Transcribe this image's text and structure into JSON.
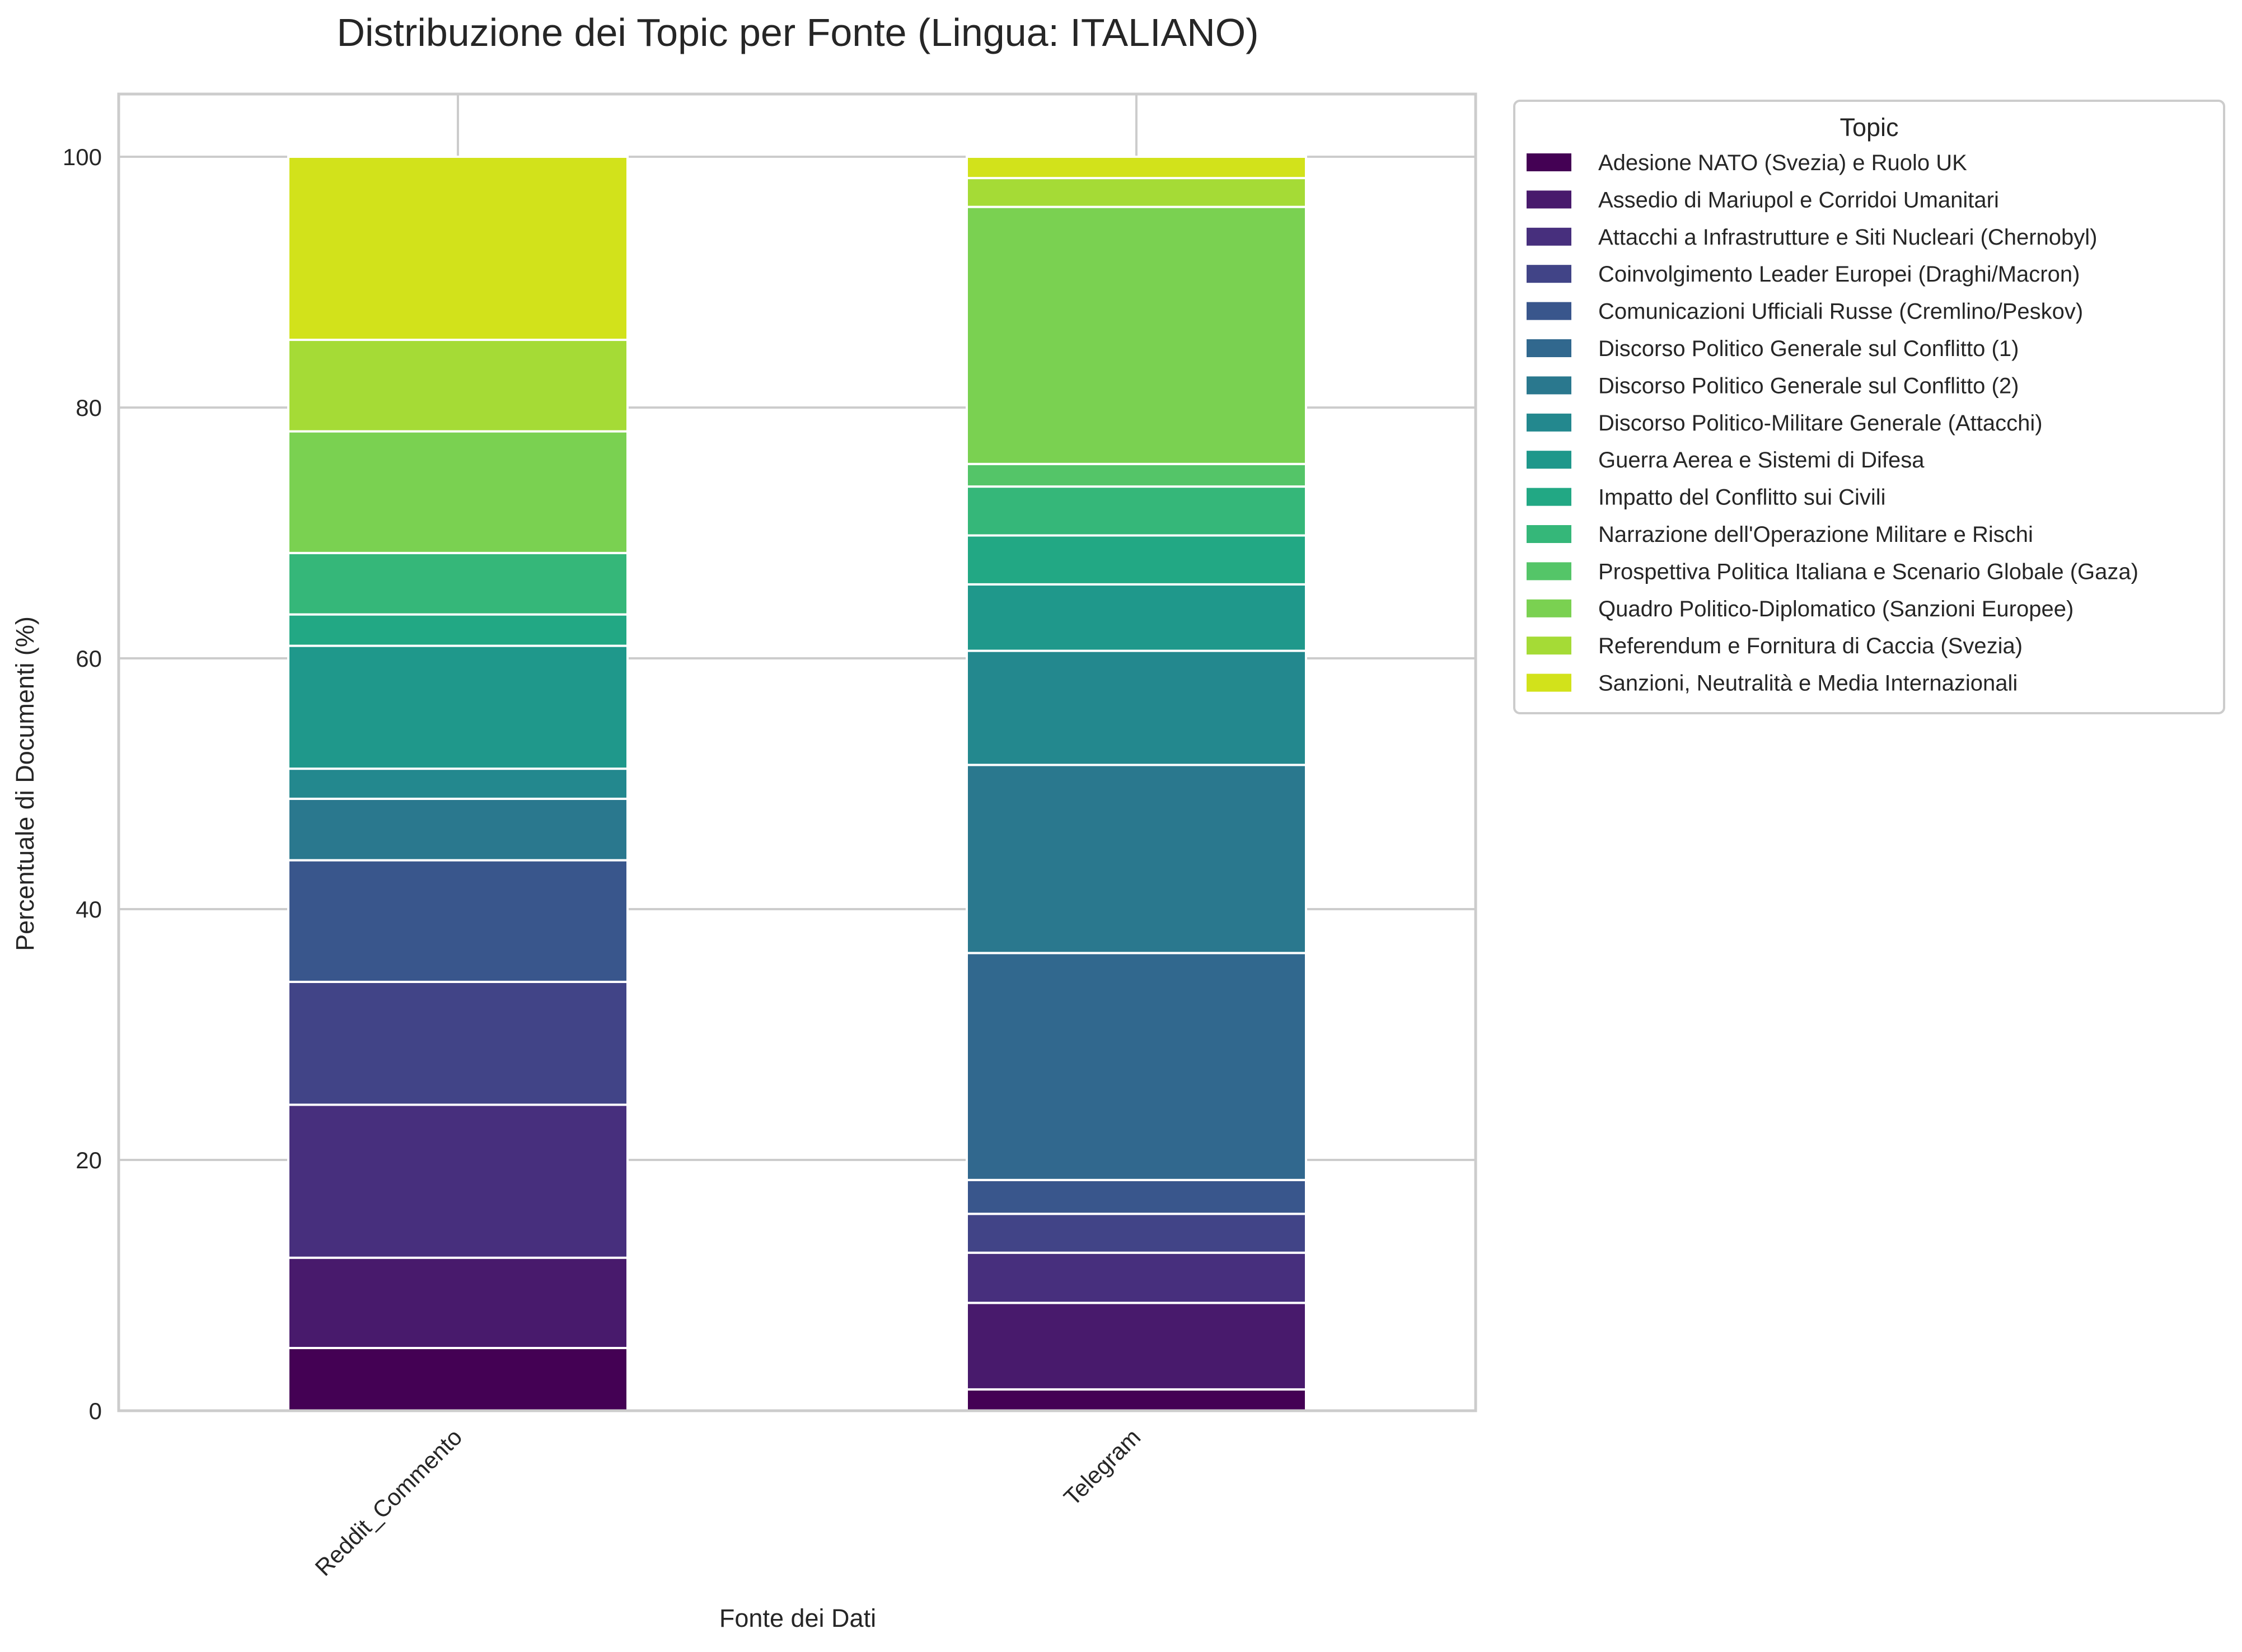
{
  "chart_data": {
    "type": "bar",
    "stacked": true,
    "title": "Distribuzione dei Topic per Fonte (Lingua: ITALIANO)",
    "xlabel": "Fonte dei Dati",
    "ylabel": "Percentuale di Documenti (%)",
    "ylim": [
      0,
      105
    ],
    "yticks": [
      0,
      20,
      40,
      60,
      80,
      100
    ],
    "categories": [
      "Reddit_Commento",
      "Telegram"
    ],
    "grid": true,
    "legend": {
      "title": "Topic",
      "placement": "outside-top-right"
    },
    "series": [
      {
        "name": "Adesione NATO (Svezia) e Ruolo UK",
        "color": "#440154",
        "values": [
          5.0,
          1.7
        ]
      },
      {
        "name": "Assedio di Mariupol e Corridoi Umanitari",
        "color": "#481a6c",
        "values": [
          7.2,
          6.9
        ]
      },
      {
        "name": "Attacchi a Infrastrutture e Siti Nucleari (Chernobyl)",
        "color": "#472f7d",
        "values": [
          12.2,
          4.0
        ]
      },
      {
        "name": "Coinvolgimento Leader Europei (Draghi/Macron)",
        "color": "#414487",
        "values": [
          9.8,
          3.1
        ]
      },
      {
        "name": "Comunicazioni Ufficiali Russe (Cremlino/Peskov)",
        "color": "#39568c",
        "values": [
          9.7,
          2.7
        ]
      },
      {
        "name": "Discorso Politico Generale sul Conflitto (1)",
        "color": "#31688e",
        "values": [
          0.0,
          18.1
        ]
      },
      {
        "name": "Discorso Politico Generale sul Conflitto (2)",
        "color": "#2a788e",
        "values": [
          4.9,
          15.0
        ]
      },
      {
        "name": "Discorso Politico-Militare Generale (Attacchi)",
        "color": "#23888e",
        "values": [
          2.4,
          9.1
        ]
      },
      {
        "name": "Guerra Aerea e Sistemi di Difesa",
        "color": "#1f988b",
        "values": [
          9.8,
          5.3
        ]
      },
      {
        "name": "Impatto del Conflitto sui Civili",
        "color": "#22a884",
        "values": [
          2.5,
          3.9
        ]
      },
      {
        "name": "Narrazione dell'Operazione Militare e Rischi",
        "color": "#35b779",
        "values": [
          4.9,
          3.9
        ]
      },
      {
        "name": "Prospettiva Politica Italiana e Scenario Globale (Gaza)",
        "color": "#54c568",
        "values": [
          0.0,
          1.8
        ]
      },
      {
        "name": "Quadro Politico-Diplomatico (Sanzioni Europee)",
        "color": "#7ad151",
        "values": [
          9.7,
          20.5
        ]
      },
      {
        "name": "Referendum e Fornitura di Caccia (Svezia)",
        "color": "#a5db36",
        "values": [
          7.3,
          2.3
        ]
      },
      {
        "name": "Sanzioni, Neutralità e Media Internazionali",
        "color": "#d2e21b",
        "values": [
          14.6,
          1.7
        ]
      }
    ]
  }
}
